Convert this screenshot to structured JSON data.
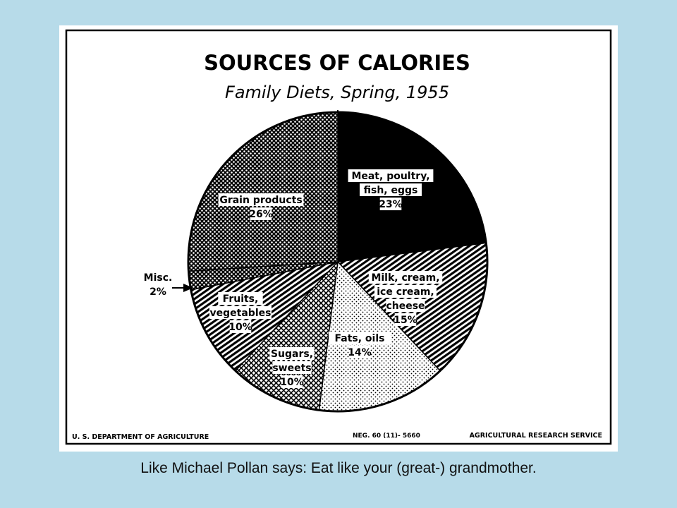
{
  "chart_data": {
    "type": "pie",
    "title": "SOURCES OF CALORIES",
    "subtitle": "Family Diets, Spring, 1955",
    "start": "12 o'clock",
    "direction": "clockwise",
    "slices": [
      {
        "lines": [
          "Meat, poultry,",
          "fish, eggs"
        ],
        "pct_label": "23%",
        "value": 23,
        "pattern": "black"
      },
      {
        "lines": [
          "Milk, cream,",
          "ice cream,",
          "cheese"
        ],
        "pct_label": "15%",
        "value": 15,
        "pattern": "diagonal-stripes"
      },
      {
        "lines": [
          "Fats, oils"
        ],
        "pct_label": "14%",
        "value": 14,
        "pattern": "light-dots"
      },
      {
        "lines": [
          "Sugars,",
          "sweets"
        ],
        "pct_label": "10%",
        "value": 10,
        "pattern": "cross-hatch"
      },
      {
        "lines": [
          "Fruits,",
          "vegetables"
        ],
        "pct_label": "10%",
        "value": 10,
        "pattern": "diagonal-stripes"
      },
      {
        "lines": [
          "Misc."
        ],
        "pct_label": "2%",
        "value": 2,
        "pattern": "dark-dots"
      },
      {
        "lines": [
          "Grain products"
        ],
        "pct_label": "26%",
        "value": 26,
        "pattern": "dark-dots"
      }
    ],
    "footer_left": "U. S. DEPARTMENT OF AGRICULTURE",
    "footer_mid": "NEG. 60 (11)- 5660",
    "footer_right": "AGRICULTURAL RESEARCH SERVICE"
  },
  "caption": "Like Michael Pollan says:  Eat like your (great-) grandmother."
}
